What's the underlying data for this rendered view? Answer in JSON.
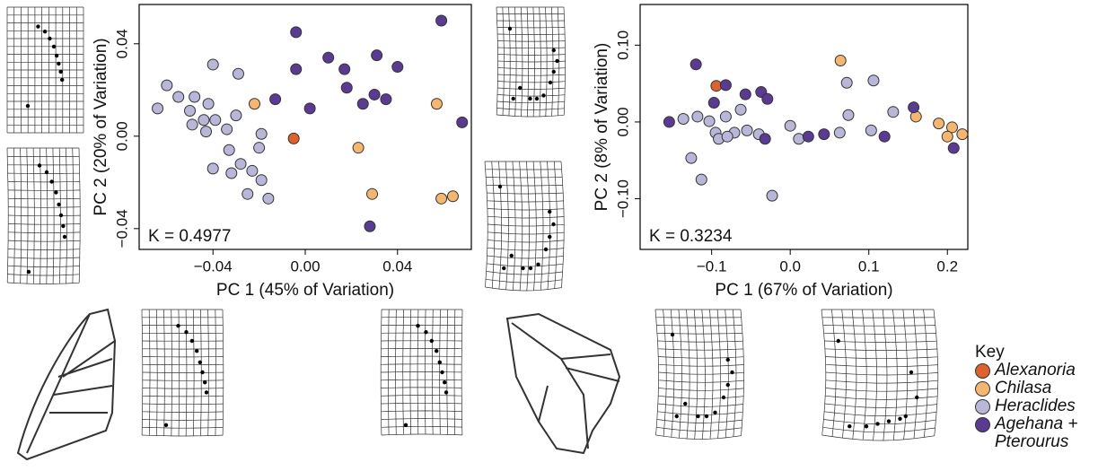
{
  "chart_data": [
    {
      "type": "scatter",
      "xlabel": "PC 1 (45% of Variation)",
      "ylabel": "PC 2 (20% of Variation)",
      "annotation": "K = 0.4977",
      "xlim": [
        -0.072,
        0.072
      ],
      "ylim": [
        -0.049,
        0.057
      ],
      "xticks": [
        {
          "value": -0.04,
          "label": "−0.04"
        },
        {
          "value": 0,
          "label": "0.00"
        },
        0.04
      ],
      "yticks": [
        {
          "value": -0.04,
          "label": "−0.04"
        },
        {
          "value": 0,
          "label": "0.00"
        },
        0.04
      ],
      "series": [
        {
          "name": "Alexanoria",
          "color": "#e0612a",
          "x": [
            -0.005
          ],
          "values": [
            -0.001
          ]
        },
        {
          "name": "Chilasa",
          "color": "#f7b66e",
          "x": [
            -0.022,
            0.023,
            0.029,
            0.057,
            0.064,
            0.059
          ],
          "values": [
            0.014,
            -0.005,
            -0.025,
            0.014,
            -0.026,
            -0.027
          ]
        },
        {
          "name": "Heraclides",
          "color": "#b9b7d9",
          "x": [
            -0.04,
            -0.029,
            -0.06,
            -0.055,
            -0.048,
            -0.064,
            -0.05,
            -0.042,
            -0.044,
            -0.039,
            -0.03,
            -0.049,
            -0.043,
            -0.034,
            -0.019,
            -0.02,
            -0.033,
            -0.028,
            -0.023,
            -0.04,
            -0.019,
            -0.016,
            -0.025,
            -0.032
          ],
          "values": [
            0.031,
            0.027,
            0.022,
            0.017,
            0.017,
            0.012,
            0.011,
            0.014,
            0.007,
            0.007,
            0.009,
            0.005,
            0.002,
            0.003,
            0.001,
            -0.005,
            -0.006,
            -0.012,
            -0.015,
            -0.014,
            -0.019,
            -0.027,
            -0.025,
            -0.016
          ]
        },
        {
          "name": "Agehana + Pterourus",
          "color": "#5b3a94",
          "x": [
            -0.004,
            0.059,
            -0.004,
            0.01,
            0.017,
            0.031,
            0.04,
            -0.013,
            0.002,
            0.018,
            0.03,
            0.035,
            0.025,
            0.068,
            0.028
          ],
          "values": [
            0.045,
            0.05,
            0.029,
            0.034,
            0.029,
            0.035,
            0.03,
            0.016,
            0.012,
            0.021,
            0.018,
            0.016,
            0.014,
            0.006,
            -0.039
          ]
        }
      ]
    },
    {
      "type": "scatter",
      "xlabel": "PC 1 (67% of Variation)",
      "ylabel": "PC 2 (8% of Variation)",
      "annotation": "K = 0.3234",
      "legend_title": "Key",
      "xlim": [
        -0.191,
        0.226
      ],
      "ylim": [
        -0.166,
        0.153
      ],
      "xticks": [
        {
          "value": -0.1,
          "label": "−0.1"
        },
        {
          "value": 0,
          "label": "0.0"
        },
        0.1,
        0.2
      ],
      "yticks": [
        {
          "value": -0.1,
          "label": "−0.10"
        },
        {
          "value": 0,
          "label": "0.00"
        },
        {
          "value": 0.1,
          "label": "0.10"
        }
      ],
      "series": [
        {
          "name": "Alexanoria",
          "color": "#e0612a",
          "x": [
            -0.094
          ],
          "values": [
            0.047
          ]
        },
        {
          "name": "Chilasa",
          "color": "#f7b66e",
          "x": [
            0.064,
            0.16,
            0.189,
            0.206,
            0.219,
            0.2
          ],
          "values": [
            0.08,
            0.007,
            -0.002,
            -0.007,
            -0.016,
            -0.019
          ]
        },
        {
          "name": "Heraclides",
          "color": "#b9b7d9",
          "x": [
            0.072,
            0.106,
            -0.136,
            -0.118,
            -0.103,
            -0.082,
            -0.063,
            -0.071,
            -0.095,
            -0.04,
            -0.091,
            -0.126,
            -0.113,
            -0.023,
            0.011,
            0.063,
            0.074,
            0.131,
            0.103,
            0.0,
            -0.055,
            -0.08
          ],
          "values": [
            0.051,
            0.054,
            0.004,
            0.007,
            0.001,
            0.007,
            0.016,
            -0.014,
            -0.014,
            -0.016,
            -0.022,
            -0.047,
            -0.075,
            -0.096,
            -0.022,
            -0.014,
            0.009,
            0.013,
            -0.011,
            -0.005,
            -0.011,
            -0.019
          ]
        },
        {
          "name": "Agehana + Pterourus",
          "color": "#5b3a94",
          "x": [
            -0.12,
            -0.082,
            -0.057,
            -0.037,
            -0.029,
            -0.097,
            -0.154,
            -0.032,
            0.023,
            0.043,
            0.157,
            0.12,
            0.208
          ],
          "values": [
            0.075,
            0.048,
            0.036,
            0.039,
            0.03,
            0.025,
            0.0,
            -0.022,
            -0.019,
            -0.016,
            0.019,
            -0.019,
            -0.034
          ]
        }
      ]
    }
  ]
}
